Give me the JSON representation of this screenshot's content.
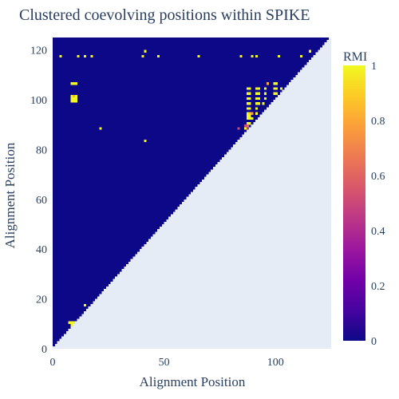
{
  "chart_data": {
    "type": "heatmap",
    "title": "Clustered coevolving positions within SPIKE",
    "xlabel": "Alignment Position",
    "ylabel": "Alignment Position",
    "colorbar_title": "RMI",
    "n_positions": 125,
    "xlim": [
      0,
      125
    ],
    "ylim": [
      0,
      125
    ],
    "z_range": [
      0,
      1
    ],
    "x_ticks": [
      0,
      50,
      100
    ],
    "y_ticks": [
      0,
      20,
      40,
      60,
      80,
      100,
      120
    ],
    "colorbar_ticks": [
      0,
      0.2,
      0.4,
      0.6,
      0.8,
      1
    ],
    "grid": true,
    "background_value": 0,
    "upper_triangle_only": true,
    "colorscale": [
      [
        0.0,
        "#0d0887"
      ],
      [
        0.1111,
        "#46039f"
      ],
      [
        0.2222,
        "#7201a8"
      ],
      [
        0.3333,
        "#9c179e"
      ],
      [
        0.4444,
        "#bd3786"
      ],
      [
        0.5556,
        "#d8576b"
      ],
      [
        0.6667,
        "#ed7953"
      ],
      [
        0.7778,
        "#fb9f3a"
      ],
      [
        0.8889,
        "#fdca26"
      ],
      [
        1.0,
        "#f0f921"
      ]
    ],
    "colors": {
      "plot_bg": "#e5ecf6",
      "text": "#2a3f5f"
    },
    "points": [
      [
        3,
        117,
        1
      ],
      [
        11,
        117,
        1
      ],
      [
        14,
        117,
        1
      ],
      [
        17,
        117,
        1
      ],
      [
        40,
        117,
        1
      ],
      [
        47,
        117,
        1
      ],
      [
        65,
        117,
        1
      ],
      [
        84,
        117,
        1
      ],
      [
        89,
        117,
        1
      ],
      [
        91,
        117,
        1
      ],
      [
        101,
        117,
        1
      ],
      [
        111,
        117,
        1
      ],
      [
        41,
        119,
        1
      ],
      [
        115,
        119,
        1
      ],
      [
        8,
        106,
        1
      ],
      [
        9,
        106,
        1
      ],
      [
        10,
        106,
        1
      ],
      [
        8,
        100,
        1
      ],
      [
        9,
        100,
        1
      ],
      [
        10,
        100,
        1
      ],
      [
        8,
        101,
        1
      ],
      [
        10,
        101,
        1
      ],
      [
        9,
        101,
        0.85
      ],
      [
        8,
        99,
        1
      ],
      [
        9,
        99,
        1
      ],
      [
        10,
        99,
        1
      ],
      [
        21,
        88,
        1
      ],
      [
        41,
        83,
        1
      ],
      [
        87,
        104,
        1
      ],
      [
        88,
        104,
        1
      ],
      [
        91,
        104,
        1
      ],
      [
        92,
        104,
        1
      ],
      [
        95,
        104,
        1
      ],
      [
        99,
        104,
        1
      ],
      [
        100,
        104,
        1
      ],
      [
        102,
        104,
        1
      ],
      [
        99,
        106,
        1
      ],
      [
        100,
        106,
        1
      ],
      [
        96,
        106,
        0.8
      ],
      [
        87,
        102,
        1
      ],
      [
        88,
        102,
        1
      ],
      [
        91,
        102,
        1
      ],
      [
        92,
        102,
        1
      ],
      [
        95,
        102,
        1
      ],
      [
        99,
        102,
        1
      ],
      [
        100,
        102,
        1
      ],
      [
        87,
        100,
        1
      ],
      [
        88,
        100,
        1
      ],
      [
        91,
        100,
        1
      ],
      [
        92,
        100,
        1
      ],
      [
        95,
        100,
        1
      ],
      [
        87,
        98,
        1
      ],
      [
        88,
        98,
        1
      ],
      [
        91,
        98,
        1
      ],
      [
        92,
        98,
        1
      ],
      [
        94,
        98,
        1
      ],
      [
        87,
        96,
        1
      ],
      [
        88,
        96,
        1
      ],
      [
        91,
        96,
        1
      ],
      [
        87,
        94,
        1
      ],
      [
        88,
        94,
        0.9
      ],
      [
        89,
        94,
        0.75
      ],
      [
        87,
        93,
        1
      ],
      [
        88,
        93,
        1
      ],
      [
        91,
        94,
        1
      ],
      [
        87,
        92,
        1
      ],
      [
        88,
        92,
        1
      ],
      [
        89,
        92,
        1
      ],
      [
        87,
        90,
        1
      ],
      [
        88,
        90,
        1
      ],
      [
        86,
        89,
        0.5
      ],
      [
        87,
        89,
        0.6
      ],
      [
        86,
        88,
        1
      ],
      [
        87,
        88,
        0.45
      ],
      [
        83,
        88,
        0.5
      ],
      [
        8,
        9,
        1
      ],
      [
        7,
        10,
        1
      ],
      [
        8,
        10,
        1
      ],
      [
        9,
        10,
        1
      ],
      [
        14,
        17,
        1
      ]
    ]
  }
}
